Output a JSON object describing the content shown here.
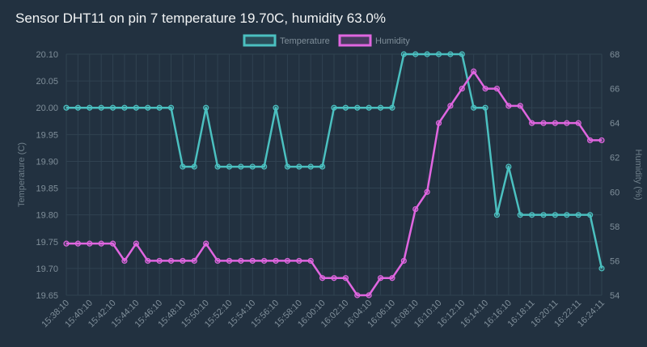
{
  "chart_data": {
    "type": "line",
    "title": "Sensor DHT11 on pin 7 temperature 19.70C, humidity 63.0%",
    "legend_position": "top-center",
    "grid": true,
    "x_labels": [
      "15:38:10",
      "15:40:10",
      "15:42:10",
      "15:44:10",
      "15:46:10",
      "15:48:10",
      "15:50:10",
      "15:52:10",
      "15:54:10",
      "15:56:10",
      "15:58:10",
      "16:00:10",
      "16:02:10",
      "16:04:10",
      "16:06:10",
      "16:08:10",
      "16:10:10",
      "16:12:10",
      "16:14:10",
      "16:16:10",
      "16:18:11",
      "16:20:11",
      "16:22:11",
      "16:24:11"
    ],
    "series": [
      {
        "name": "Temperature",
        "color": "#4bc0c0",
        "axis": "left",
        "values": [
          20.0,
          20.0,
          20.0,
          20.0,
          20.0,
          20.0,
          20.0,
          20.0,
          20.0,
          20.0,
          19.89,
          19.89,
          20.0,
          19.89,
          19.89,
          19.89,
          19.89,
          19.89,
          20.0,
          19.89,
          19.89,
          19.89,
          19.89,
          20.0,
          20.0,
          20.0,
          20.0,
          20.0,
          20.0,
          20.1,
          20.1,
          20.1,
          20.1,
          20.1,
          20.1,
          20.0,
          20.0,
          19.8,
          19.89,
          19.8,
          19.8,
          19.8,
          19.8,
          19.8,
          19.8,
          19.8,
          19.7
        ]
      },
      {
        "name": "Humidity",
        "color": "#e066e0",
        "axis": "right",
        "values": [
          57,
          57,
          57,
          57,
          57,
          56,
          57,
          56,
          56,
          56,
          56,
          56,
          57,
          56,
          56,
          56,
          56,
          56,
          56,
          56,
          56,
          56,
          55,
          55,
          55,
          54,
          54,
          55,
          55,
          56,
          59,
          60,
          64,
          65,
          66,
          67,
          66,
          66,
          65,
          65,
          64,
          64,
          64,
          64,
          64,
          63,
          63
        ]
      }
    ],
    "y_left": {
      "label": "Temperature (C)",
      "min": 19.65,
      "max": 20.1,
      "ticks": [
        "20.10",
        "20.05",
        "20.00",
        "19.95",
        "19.90",
        "19.85",
        "19.80",
        "19.75",
        "19.70",
        "19.65"
      ]
    },
    "y_right": {
      "label": "Humidity (%)",
      "min": 54,
      "max": 68,
      "ticks": [
        "68",
        "66",
        "64",
        "62",
        "60",
        "58",
        "56",
        "54"
      ]
    }
  }
}
